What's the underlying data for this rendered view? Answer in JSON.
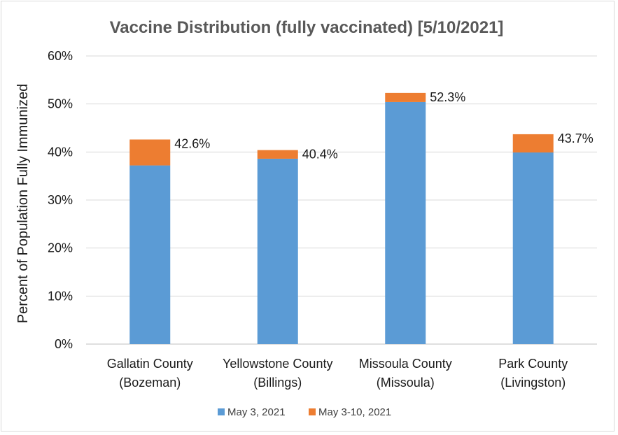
{
  "chart_data": {
    "type": "bar",
    "stacked": true,
    "title": "Vaccine Distribution (fully vaccinated) [5/10/2021]",
    "xlabel": "",
    "ylabel": "Percent of Population Fully Immunized",
    "ylim": [
      0,
      60
    ],
    "yticks": [
      "0%",
      "10%",
      "20%",
      "30%",
      "40%",
      "50%",
      "60%"
    ],
    "grid": true,
    "legend_position": "bottom",
    "categories": [
      [
        "Gallatin County",
        "(Bozeman)"
      ],
      [
        "Yellowstone County",
        "(Billings)"
      ],
      [
        "Missoula County",
        "(Missoula)"
      ],
      [
        "Park County",
        "(Livingston)"
      ]
    ],
    "series": [
      {
        "name": "May 3, 2021",
        "color": "#5b9bd5",
        "values": [
          37.2,
          38.6,
          50.4,
          39.9
        ]
      },
      {
        "name": "May 3-10, 2021",
        "color": "#ed7d31",
        "values": [
          5.4,
          1.8,
          1.9,
          3.8
        ]
      }
    ],
    "data_labels": [
      "42.6%",
      "40.4%",
      "52.3%",
      "43.7%"
    ]
  }
}
